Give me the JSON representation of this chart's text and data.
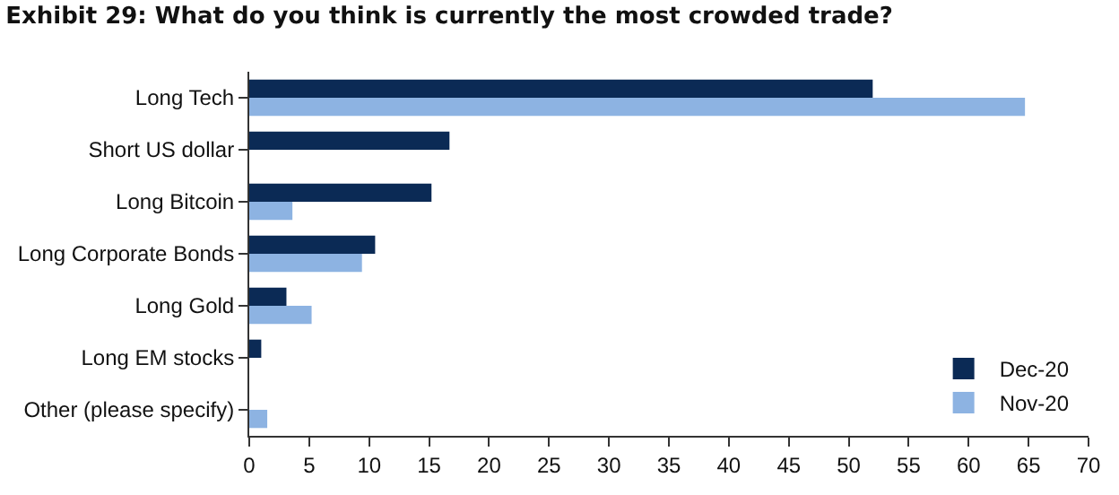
{
  "chart_data": {
    "type": "bar",
    "orientation": "horizontal",
    "title": "Exhibit 29: What do you think is currently the most crowded trade?",
    "categories": [
      "Long Tech",
      "Short US dollar",
      "Long Bitcoin",
      "Long Corporate Bonds",
      "Long Gold",
      "Long EM stocks",
      "Other (please specify)"
    ],
    "series": [
      {
        "name": "Dec-20",
        "color": "#0b2a55",
        "values": [
          52.0,
          16.7,
          15.2,
          10.5,
          3.1,
          1.0,
          0
        ]
      },
      {
        "name": "Nov-20",
        "color": "#8db3e2",
        "values": [
          64.7,
          0,
          3.6,
          9.4,
          5.2,
          0,
          1.5
        ]
      }
    ],
    "xlim": [
      0,
      70
    ],
    "xticks": [
      0,
      5,
      10,
      15,
      20,
      25,
      30,
      35,
      40,
      45,
      50,
      55,
      60,
      65,
      70
    ],
    "legend": "bottom right"
  }
}
